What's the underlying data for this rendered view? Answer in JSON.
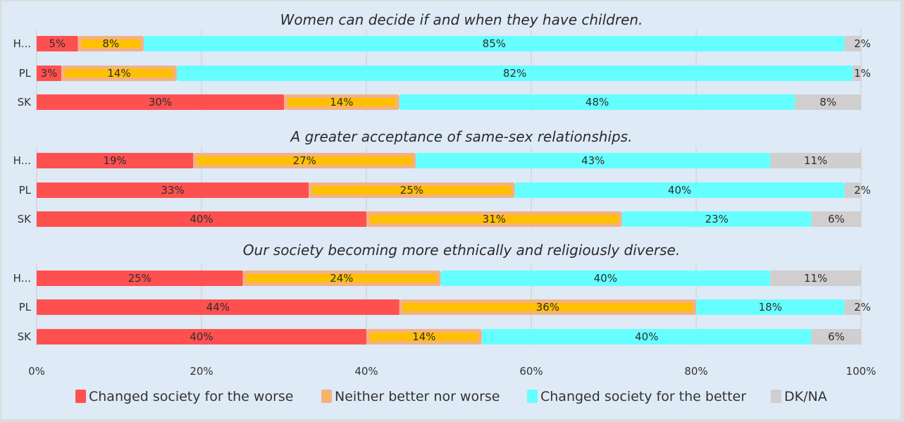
{
  "chart_data": {
    "type": "bar",
    "orientation": "horizontal",
    "stacked": "100%",
    "xlim": [
      0,
      100
    ],
    "xticks": [
      "0%",
      "20%",
      "40%",
      "60%",
      "80%",
      "100%"
    ],
    "grid": true,
    "legend_position": "bottom",
    "series_names": [
      "Changed society for the worse",
      "Neither better nor worse",
      "Changed society for the better",
      "DK/NA"
    ],
    "colors": {
      "worse": "#ff5050",
      "neither_outer": "#f4b183",
      "neither_inner": "#ffc000",
      "better": "#66ffff",
      "dkna": "#d0cece"
    },
    "panels": [
      {
        "title": "Women can decide if and when they have children.",
        "categories": [
          "H...",
          "PL",
          "SK"
        ],
        "series": [
          {
            "name": "Changed society for the worse",
            "values": [
              5,
              3,
              30
            ]
          },
          {
            "name": "Neither better nor worse",
            "values": [
              8,
              14,
              14
            ]
          },
          {
            "name": "Changed society for the better",
            "values": [
              85,
              82,
              48
            ]
          },
          {
            "name": "DK/NA",
            "values": [
              2,
              1,
              8
            ]
          }
        ]
      },
      {
        "title": "A greater acceptance of same-sex relationships.",
        "categories": [
          "H...",
          "PL",
          "SK"
        ],
        "series": [
          {
            "name": "Changed society for the worse",
            "values": [
              19,
              33,
              40
            ]
          },
          {
            "name": "Neither better nor worse",
            "values": [
              27,
              25,
              31
            ]
          },
          {
            "name": "Changed society for the better",
            "values": [
              43,
              40,
              23
            ]
          },
          {
            "name": "DK/NA",
            "values": [
              11,
              2,
              6
            ]
          }
        ]
      },
      {
        "title": "Our society becoming more ethnically and religiously diverse.",
        "categories": [
          "H...",
          "PL",
          "SK"
        ],
        "series": [
          {
            "name": "Changed society for the worse",
            "values": [
              25,
              44,
              40
            ]
          },
          {
            "name": "Neither better nor worse",
            "values": [
              24,
              36,
              14
            ]
          },
          {
            "name": "Changed society for the better",
            "values": [
              40,
              18,
              40
            ]
          },
          {
            "name": "DK/NA",
            "values": [
              11,
              2,
              6
            ]
          }
        ]
      }
    ]
  }
}
